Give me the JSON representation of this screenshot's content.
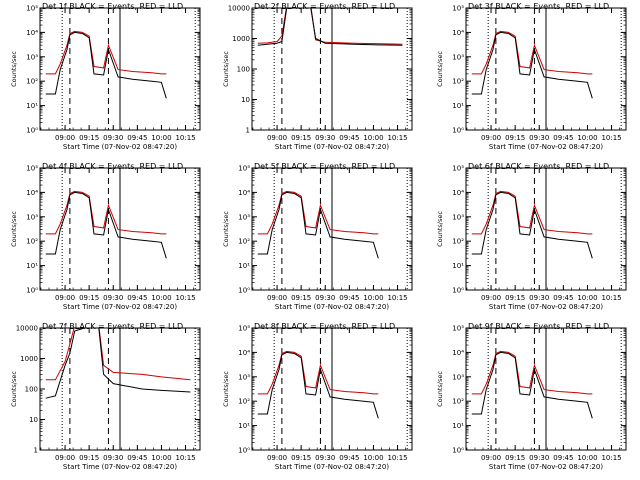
{
  "ylabel": "Counts/sec",
  "legend_note": "BLACK = Events, RED = LLD",
  "xlabel": "Start Time (07-Nov-02 08:47:20)",
  "xticks": [
    "09:00",
    "09:15",
    "09:30",
    "09:45",
    "10:00",
    "10:15"
  ],
  "colors": {
    "events": "#000000",
    "lld": "#d00000",
    "axis": "#000000"
  },
  "chart_data": [
    {
      "type": "line",
      "title": "Det 1f",
      "scale": "log",
      "ylim": [
        1,
        100000
      ],
      "yticks": [
        "10⁰",
        "10¹",
        "10²",
        "10³",
        "10⁴",
        "10⁵"
      ],
      "x": [
        8.8,
        8.9,
        8.95,
        9.02,
        9.05,
        9.1,
        9.18,
        9.25,
        9.3,
        9.4,
        9.45,
        9.55,
        9.7,
        9.9,
        10.0,
        10.05
      ],
      "series": [
        {
          "name": "Events",
          "values": [
            30,
            30,
            300,
            2000,
            8000,
            10000,
            9000,
            6000,
            200,
            180,
            2000,
            150,
            120,
            100,
            90,
            20
          ]
        },
        {
          "name": "LLD",
          "values": [
            200,
            200,
            500,
            3000,
            9000,
            11000,
            10000,
            7000,
            400,
            350,
            3000,
            300,
            250,
            220,
            200,
            200
          ]
        }
      ],
      "dotted_lines": [
        8.97,
        10.35
      ],
      "dashed_lines": [
        9.05,
        9.45
      ],
      "solid_lines": [
        9.57
      ]
    },
    {
      "type": "line",
      "title": "Det 2f",
      "scale": "log_decimal",
      "ylim": [
        1,
        10000
      ],
      "yticks": [
        "1",
        "10",
        "100",
        "1000",
        "10000"
      ],
      "x": [
        8.8,
        8.9,
        9.0,
        9.05,
        9.1,
        9.2,
        9.3,
        9.35,
        9.4,
        9.5,
        9.8,
        10.0,
        10.3
      ],
      "series": [
        {
          "name": "Events",
          "values": [
            600,
            650,
            700,
            800,
            10000,
            10000,
            10000,
            10000,
            1000,
            700,
            650,
            620,
            600
          ]
        },
        {
          "name": "LLD",
          "values": [
            700,
            720,
            800,
            1200,
            12000,
            12000,
            12000,
            12000,
            900,
            750,
            700,
            680,
            650
          ]
        }
      ],
      "dotted_lines": [
        8.97,
        10.35
      ],
      "dashed_lines": [
        9.05,
        9.45
      ],
      "solid_lines": [
        9.57
      ]
    },
    {
      "type": "line",
      "title": "Det 3f",
      "scale": "log",
      "ylim": [
        1,
        100000
      ],
      "yticks": [
        "10⁰",
        "10¹",
        "10²",
        "10³",
        "10⁴",
        "10⁵"
      ],
      "x": [
        8.8,
        8.9,
        8.95,
        9.02,
        9.05,
        9.1,
        9.18,
        9.25,
        9.3,
        9.4,
        9.45,
        9.55,
        9.7,
        9.9,
        10.0,
        10.05
      ],
      "series": [
        {
          "name": "Events",
          "values": [
            30,
            30,
            300,
            2000,
            8000,
            10000,
            9000,
            6000,
            200,
            180,
            2000,
            150,
            120,
            100,
            90,
            20
          ]
        },
        {
          "name": "LLD",
          "values": [
            200,
            200,
            500,
            3000,
            9000,
            11000,
            10000,
            7000,
            400,
            350,
            3000,
            300,
            250,
            220,
            200,
            200
          ]
        }
      ],
      "dotted_lines": [
        8.97,
        10.35
      ],
      "dashed_lines": [
        9.05,
        9.45
      ],
      "solid_lines": [
        9.57
      ]
    },
    {
      "type": "line",
      "title": "Det 4f",
      "scale": "log",
      "ylim": [
        1,
        100000
      ],
      "yticks": [
        "10⁰",
        "10¹",
        "10²",
        "10³",
        "10⁴",
        "10⁵"
      ],
      "x": [
        8.8,
        8.9,
        8.95,
        9.02,
        9.05,
        9.1,
        9.18,
        9.25,
        9.3,
        9.4,
        9.45,
        9.55,
        9.7,
        9.9,
        10.0,
        10.05
      ],
      "series": [
        {
          "name": "Events",
          "values": [
            30,
            30,
            300,
            2000,
            8000,
            10000,
            9000,
            6000,
            200,
            180,
            2000,
            150,
            120,
            100,
            90,
            20
          ]
        },
        {
          "name": "LLD",
          "values": [
            200,
            200,
            500,
            3000,
            9000,
            11000,
            10000,
            7000,
            400,
            350,
            3000,
            300,
            250,
            220,
            200,
            200
          ]
        }
      ],
      "dotted_lines": [
        8.97,
        10.35
      ],
      "dashed_lines": [
        9.05,
        9.45
      ],
      "solid_lines": [
        9.57
      ]
    },
    {
      "type": "line",
      "title": "Det 5f",
      "scale": "log",
      "ylim": [
        1,
        100000
      ],
      "yticks": [
        "10⁰",
        "10¹",
        "10²",
        "10³",
        "10⁴",
        "10⁵"
      ],
      "x": [
        8.8,
        8.9,
        8.95,
        9.02,
        9.05,
        9.1,
        9.18,
        9.25,
        9.3,
        9.4,
        9.45,
        9.55,
        9.7,
        9.9,
        10.0,
        10.05
      ],
      "series": [
        {
          "name": "Events",
          "values": [
            30,
            30,
            300,
            2000,
            8000,
            10000,
            9000,
            6000,
            200,
            180,
            2000,
            150,
            120,
            100,
            90,
            20
          ]
        },
        {
          "name": "LLD",
          "values": [
            200,
            200,
            500,
            3000,
            9000,
            11000,
            10000,
            7000,
            400,
            350,
            3000,
            300,
            250,
            220,
            200,
            200
          ]
        }
      ],
      "dotted_lines": [
        8.97,
        10.35
      ],
      "dashed_lines": [
        9.05,
        9.45
      ],
      "solid_lines": [
        9.57
      ]
    },
    {
      "type": "line",
      "title": "Det 6f",
      "scale": "log",
      "ylim": [
        1,
        100000
      ],
      "yticks": [
        "10⁰",
        "10¹",
        "10²",
        "10³",
        "10⁴",
        "10⁵"
      ],
      "x": [
        8.8,
        8.9,
        8.95,
        9.02,
        9.05,
        9.1,
        9.18,
        9.25,
        9.3,
        9.4,
        9.45,
        9.55,
        9.7,
        9.9,
        10.0,
        10.05
      ],
      "series": [
        {
          "name": "Events",
          "values": [
            30,
            30,
            300,
            2000,
            8000,
            10000,
            9000,
            6000,
            200,
            180,
            2000,
            150,
            120,
            100,
            90,
            20
          ]
        },
        {
          "name": "LLD",
          "values": [
            200,
            200,
            500,
            3000,
            9000,
            11000,
            10000,
            7000,
            400,
            350,
            3000,
            300,
            250,
            220,
            200,
            200
          ]
        }
      ],
      "dotted_lines": [
        8.97,
        10.35
      ],
      "dashed_lines": [
        9.05,
        9.45
      ],
      "solid_lines": [
        9.57
      ]
    },
    {
      "type": "line",
      "title": "Det 7f",
      "scale": "log_decimal",
      "ylim": [
        1,
        10000
      ],
      "yticks": [
        "1",
        "10",
        "100",
        "1000",
        "10000"
      ],
      "x": [
        8.8,
        8.9,
        9.0,
        9.05,
        9.1,
        9.2,
        9.3,
        9.35,
        9.4,
        9.5,
        9.8,
        10.0,
        10.3
      ],
      "series": [
        {
          "name": "Events",
          "values": [
            50,
            60,
            600,
            1500,
            8000,
            10000,
            10000,
            10000,
            300,
            150,
            100,
            90,
            80
          ]
        },
        {
          "name": "LLD",
          "values": [
            200,
            200,
            800,
            3000,
            12000,
            12000,
            12000,
            12000,
            600,
            350,
            300,
            250,
            200
          ]
        }
      ],
      "dotted_lines": [
        8.97,
        10.35
      ],
      "dashed_lines": [
        9.05,
        9.45
      ],
      "solid_lines": [
        9.57
      ]
    },
    {
      "type": "line",
      "title": "Det 8f",
      "scale": "log",
      "ylim": [
        1,
        100000
      ],
      "yticks": [
        "10⁰",
        "10¹",
        "10²",
        "10³",
        "10⁴",
        "10⁵"
      ],
      "x": [
        8.8,
        8.9,
        8.95,
        9.02,
        9.05,
        9.1,
        9.18,
        9.25,
        9.3,
        9.4,
        9.45,
        9.55,
        9.7,
        9.9,
        10.0,
        10.05
      ],
      "series": [
        {
          "name": "Events",
          "values": [
            30,
            30,
            300,
            2000,
            8000,
            10000,
            9000,
            6000,
            200,
            180,
            2000,
            150,
            120,
            100,
            90,
            20
          ]
        },
        {
          "name": "LLD",
          "values": [
            200,
            200,
            500,
            3000,
            9000,
            11000,
            10000,
            7000,
            400,
            350,
            3000,
            300,
            250,
            220,
            200,
            200
          ]
        }
      ],
      "dotted_lines": [
        8.97,
        10.35
      ],
      "dashed_lines": [
        9.05,
        9.45
      ],
      "solid_lines": [
        9.57
      ]
    },
    {
      "type": "line",
      "title": "Det 9f",
      "scale": "log",
      "ylim": [
        1,
        100000
      ],
      "yticks": [
        "10⁰",
        "10¹",
        "10²",
        "10³",
        "10⁴",
        "10⁵"
      ],
      "x": [
        8.8,
        8.9,
        8.95,
        9.02,
        9.05,
        9.1,
        9.18,
        9.25,
        9.3,
        9.4,
        9.45,
        9.55,
        9.7,
        9.9,
        10.0,
        10.05
      ],
      "series": [
        {
          "name": "Events",
          "values": [
            30,
            30,
            300,
            2000,
            8000,
            10000,
            9000,
            6000,
            200,
            180,
            2000,
            150,
            120,
            100,
            90,
            20
          ]
        },
        {
          "name": "LLD",
          "values": [
            200,
            200,
            500,
            3000,
            9000,
            11000,
            10000,
            7000,
            400,
            350,
            3000,
            300,
            250,
            220,
            200,
            200
          ]
        }
      ],
      "dotted_lines": [
        8.97,
        10.35
      ],
      "dashed_lines": [
        9.05,
        9.45
      ],
      "solid_lines": [
        9.57
      ]
    }
  ]
}
